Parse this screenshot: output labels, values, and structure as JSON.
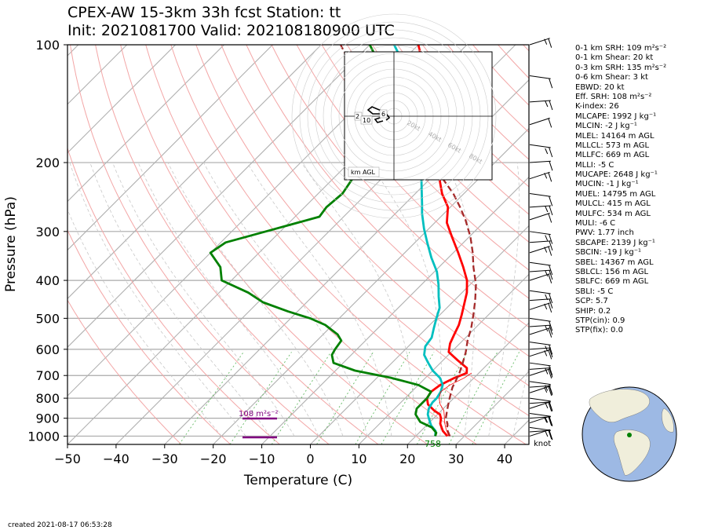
{
  "header": {
    "line1": "CPEX-AW 15-3km  33h fcst  Station: tt",
    "line2": "Init: 2021081700  Valid: 202108180900 UTC"
  },
  "footer": {
    "created": "created 2021-08-17 06:53:28"
  },
  "chart_data": {
    "type": "line",
    "title": "CPEX-AW 15-3km  33h fcst  Station: tt",
    "xlabel": "Temperature (C)",
    "ylabel": "Pressure (hPa)",
    "xlim": [
      -50,
      45
    ],
    "ylim": [
      1050,
      100
    ],
    "y_scale": "log",
    "x_ticks": [
      "−50",
      "−40",
      "−30",
      "−20",
      "−10",
      "0",
      "10",
      "20",
      "30",
      "40"
    ],
    "y_ticks": [
      100,
      200,
      300,
      400,
      500,
      600,
      700,
      800,
      900,
      1000
    ],
    "skew_degrees": 45,
    "grid": true,
    "series": [
      {
        "color": "#ff0000",
        "points": [
          [
            26.5,
            1000
          ],
          [
            24.5,
            970
          ],
          [
            22.5,
            930
          ],
          [
            21.5,
            900
          ],
          [
            20.5,
            880
          ],
          [
            18.5,
            860
          ],
          [
            16.0,
            830
          ],
          [
            14.5,
            800
          ],
          [
            14.0,
            770
          ],
          [
            14.5,
            740
          ],
          [
            16.0,
            710
          ],
          [
            17.5,
            690
          ],
          [
            16.5,
            670
          ],
          [
            13.0,
            640
          ],
          [
            9.5,
            610
          ],
          [
            8.0,
            580
          ],
          [
            7.0,
            550
          ],
          [
            6.0,
            520
          ],
          [
            4.5,
            490
          ],
          [
            2.8,
            460
          ],
          [
            1.0,
            430
          ],
          [
            -1.5,
            400
          ],
          [
            -5.0,
            370
          ],
          [
            -9.0,
            340
          ],
          [
            -13.5,
            310
          ],
          [
            -17.5,
            285
          ],
          [
            -20.5,
            260
          ],
          [
            -24.5,
            240
          ],
          [
            -30.0,
            210
          ],
          [
            -36.0,
            180
          ],
          [
            -42.0,
            155
          ],
          [
            -48.0,
            135
          ],
          [
            -54.0,
            115
          ],
          [
            -60.0,
            100
          ]
        ]
      },
      {
        "color": "#00bfbf",
        "points": [
          [
            24.0,
            1000
          ],
          [
            23.0,
            970
          ],
          [
            21.0,
            940
          ],
          [
            19.5,
            910
          ],
          [
            18.0,
            880
          ],
          [
            17.0,
            850
          ],
          [
            16.5,
            820
          ],
          [
            16.5,
            800
          ],
          [
            16.0,
            770
          ],
          [
            15.0,
            740
          ],
          [
            13.0,
            710
          ],
          [
            10.0,
            680
          ],
          [
            7.5,
            650
          ],
          [
            5.0,
            620
          ],
          [
            3.5,
            590
          ],
          [
            3.0,
            560
          ],
          [
            1.5,
            530
          ],
          [
            0.0,
            500
          ],
          [
            -1.5,
            470
          ],
          [
            -4.0,
            440
          ],
          [
            -6.5,
            410
          ],
          [
            -9.5,
            380
          ],
          [
            -13.5,
            350
          ],
          [
            -17.5,
            320
          ],
          [
            -21.0,
            295
          ],
          [
            -24.5,
            270
          ],
          [
            -26.5,
            255
          ],
          [
            -31.0,
            225
          ],
          [
            -36.0,
            195
          ],
          [
            -41.0,
            170
          ],
          [
            -47.0,
            148
          ],
          [
            -53.0,
            128
          ],
          [
            -60.0,
            110
          ],
          [
            -65.0,
            100
          ]
        ]
      },
      {
        "color": "#008000",
        "points": [
          [
            24.0,
            1000
          ],
          [
            23.5,
            980
          ],
          [
            21.5,
            950
          ],
          [
            18.0,
            920
          ],
          [
            15.5,
            880
          ],
          [
            14.5,
            850
          ],
          [
            14.5,
            800
          ],
          [
            14.0,
            770
          ],
          [
            10.0,
            740
          ],
          [
            3.0,
            710
          ],
          [
            -6.0,
            680
          ],
          [
            -12.0,
            650
          ],
          [
            -14.0,
            620
          ],
          [
            -14.5,
            600
          ],
          [
            -15.0,
            570
          ],
          [
            -17.0,
            550
          ],
          [
            -21.5,
            520
          ],
          [
            -26.0,
            500
          ],
          [
            -32.0,
            480
          ],
          [
            -39.0,
            455
          ],
          [
            -44.0,
            430
          ],
          [
            -52.0,
            400
          ],
          [
            -55.0,
            370
          ],
          [
            -60.0,
            340
          ],
          [
            -59.0,
            320
          ],
          [
            -53.0,
            300
          ],
          [
            -45.0,
            275
          ],
          [
            -45.5,
            260
          ],
          [
            -45.0,
            240
          ],
          [
            -46.0,
            220
          ],
          [
            -47.0,
            200
          ],
          [
            -49.0,
            180
          ],
          [
            -52.0,
            160
          ],
          [
            -56.0,
            140
          ],
          [
            -60.0,
            125
          ],
          [
            -65.0,
            110
          ],
          [
            -70.0,
            100
          ]
        ]
      },
      {
        "color": "#a52a2a",
        "dashed": true,
        "points": [
          [
            27.0,
            1000
          ],
          [
            25.0,
            960
          ],
          [
            24.0,
            930
          ],
          [
            22.5,
            900
          ],
          [
            21.5,
            870
          ],
          [
            20.5,
            840
          ],
          [
            19.5,
            810
          ],
          [
            18.5,
            780
          ],
          [
            17.5,
            750
          ],
          [
            16.8,
            720
          ],
          [
            16.0,
            690
          ],
          [
            14.6,
            650
          ],
          [
            13.0,
            610
          ],
          [
            11.0,
            570
          ],
          [
            9.2,
            530
          ],
          [
            6.9,
            490
          ],
          [
            4.3,
            450
          ],
          [
            1.2,
            410
          ],
          [
            -2.9,
            370
          ],
          [
            -6.0,
            340
          ],
          [
            -9.7,
            310
          ],
          [
            -14.3,
            280
          ],
          [
            -18.0,
            260
          ],
          [
            -22.2,
            240
          ],
          [
            -27.4,
            220
          ],
          [
            -33.7,
            200
          ],
          [
            -40.0,
            180
          ],
          [
            -47.5,
            160
          ],
          [
            -56.0,
            140
          ],
          [
            -63.0,
            125
          ],
          [
            -71.0,
            110
          ],
          [
            -76.0,
            100
          ]
        ]
      }
    ],
    "annotations": [
      {
        "text": "108 m²s⁻²",
        "pressure": 880,
        "x": -10.5
      },
      {
        "text": "758",
        "pressure": 1013,
        "x": 25.5
      }
    ],
    "hodograph": {
      "ring_labels": [
        "20kt",
        "40kt",
        "60kt",
        "80kt"
      ],
      "height_labels": [
        "2",
        "10",
        "6"
      ],
      "legend": "km AGL"
    },
    "wind_units": "knot"
  },
  "indices": [
    "0-1 km SRH: 109 m²s⁻²",
    "0-1 km Shear: 20 kt",
    "0-3 km SRH: 135 m²s⁻²",
    "0-6 km Shear: 3 kt",
    "EBWD: 20 kt",
    "Eff. SRH: 108 m²s⁻²",
    "K-index: 26",
    "MLCAPE: 1992 J kg⁻¹",
    "MLCIN: -2 J kg⁻¹",
    "MLEL: 14164 m AGL",
    "MLLCL: 573 m AGL",
    "MLLFC: 669 m AGL",
    "MLLI: -5 C",
    "MUCAPE: 2648 J kg⁻¹",
    "MUCIN: -1 J kg⁻¹",
    "MUEL: 14795 m AGL",
    "MULCL: 415 m AGL",
    "MULFC: 534 m AGL",
    "MULI: -6 C",
    "PWV: 1.77 inch",
    "SBCAPE: 2139 J kg⁻¹",
    "SBCIN: -19 J kg⁻¹",
    "SBEL: 14367 m AGL",
    "SBLCL: 156 m AGL",
    "SBLFC: 669 m AGL",
    "SBLI: -5 C",
    "SCP: 5.7",
    "SHIP: 0.2",
    "STP(cin): 0.9",
    "STP(fix): 0.0"
  ],
  "colors": {
    "ocean": "#9db9e4",
    "land": "#f0eedb",
    "station": "#008000"
  }
}
